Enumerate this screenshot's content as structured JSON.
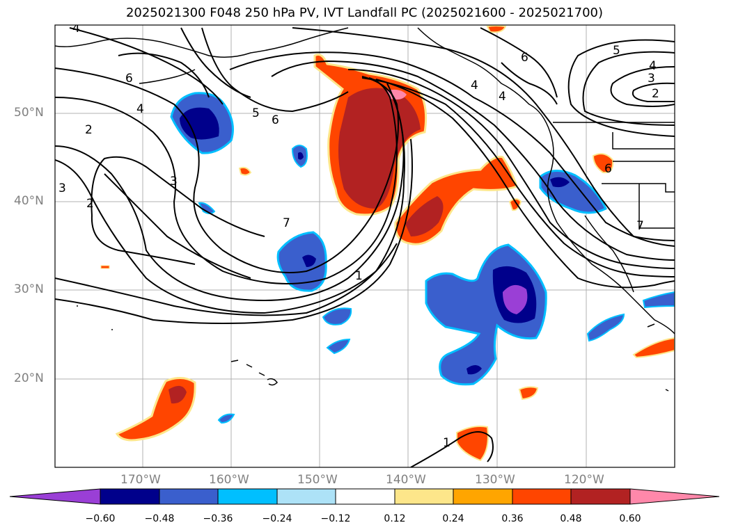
{
  "title": "2025021300 F048 250 hPa PV, IVT Landfall PC (2025021600 - 2025021700)",
  "lat_labels": [
    "50°N",
    "40°N",
    "30°N",
    "20°N"
  ],
  "lon_labels": [
    "170°W",
    "160°W",
    "150°W",
    "140°W",
    "130°W",
    "120°W"
  ],
  "colorbar": {
    "ticks": [
      "−0.60",
      "−0.48",
      "−0.36",
      "−0.24",
      "−0.12",
      "0.12",
      "0.24",
      "0.36",
      "0.48",
      "0.60"
    ],
    "colors": [
      "#9a3fd6",
      "#00008b",
      "#3a5fcd",
      "#00bfff",
      "#ade2f7",
      "#ffffff",
      "#fde68a",
      "#ffa500",
      "#ff4500",
      "#b22222",
      "#ff88aa"
    ]
  },
  "contour_labels": [
    "4",
    "6",
    "4",
    "2",
    "3",
    "2",
    "3",
    "5",
    "6",
    "7",
    "1",
    "1",
    "5",
    "4",
    "3",
    "2",
    "6",
    "6",
    "4",
    "7",
    "4"
  ]
}
